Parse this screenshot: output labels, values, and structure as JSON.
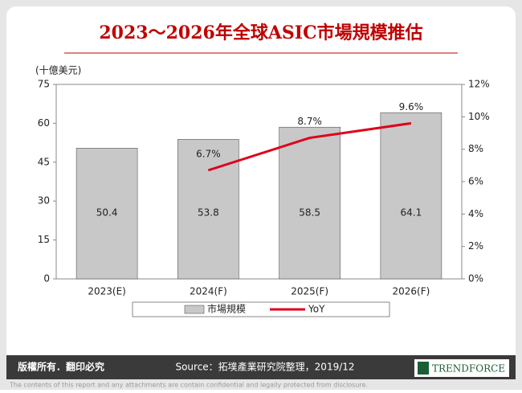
{
  "chart_data": {
    "type": "bar",
    "title": "2023～2026年全球ASIC市場規模推估",
    "y_label": "(十億美元)",
    "categories": [
      "2023(E)",
      "2024(F)",
      "2025(F)",
      "2026(F)"
    ],
    "series": [
      {
        "name": "市場規模",
        "color": "#c8c8c8",
        "values": [
          50.4,
          53.8,
          58.5,
          64.1
        ]
      },
      {
        "name": "YoY",
        "type": "line",
        "axis": "y2",
        "color": "#e0001b",
        "values": [
          null,
          6.7,
          8.7,
          9.6
        ],
        "value_labels": [
          null,
          "6.7%",
          "8.7%",
          "9.6%"
        ]
      }
    ],
    "ylim": [
      0,
      75
    ],
    "yticks": [
      0,
      15,
      30,
      45,
      60,
      75
    ],
    "y2lim": [
      0,
      12
    ],
    "y2ticks": [
      {
        "value": 0,
        "label": "0%"
      },
      {
        "value": 2,
        "label": "2%"
      },
      {
        "value": 4,
        "label": "4%"
      },
      {
        "value": 6,
        "label": "6%"
      },
      {
        "value": 8,
        "label": "8%"
      },
      {
        "value": 10,
        "label": "10%"
      },
      {
        "value": 12,
        "label": "12%"
      }
    ],
    "legend": "bottom"
  },
  "footer": {
    "rights": "版權所有．翻印必究",
    "source": "Source：拓墣產業研究院整理，2019/12",
    "logo": "TRENDFORCE",
    "disclaimer": "The contents of this report and any attachments are contain confidential and legally protected from disclosure."
  }
}
